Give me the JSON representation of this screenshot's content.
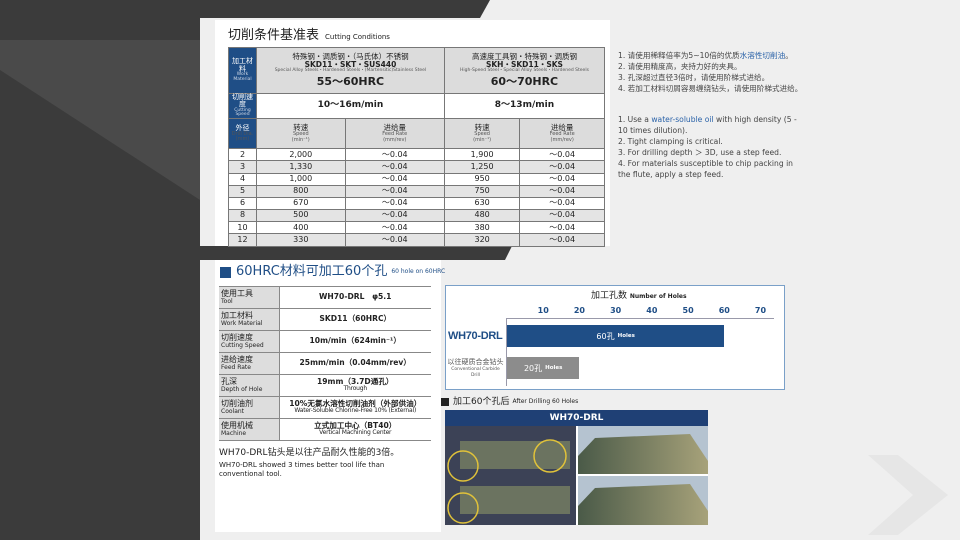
{
  "cutting": {
    "title": "切削条件基准表",
    "title_en": "Cutting Conditions",
    "work_label": "加工材料",
    "work_label_en": "Work Material",
    "speed_label": "切削速度",
    "speed_label_en": "Cutting Speed",
    "dia_label": "外径",
    "dia_label_en": "Drill Dia.",
    "dia_unit": "(mm)",
    "groups": [
      {
        "cn": "特殊钢・调质钢・（马氏体）不锈钢",
        "codes": "SKD11・SKT・SUS440",
        "en": "Special Alloy Steels・Hardened Steels・(Martensitic)Stainless Steel",
        "hrc": "55～60HRC",
        "speed": "10～16m/min"
      },
      {
        "cn": "高速度工具钢・特殊钢・调质钢",
        "codes": "SKH・SKD11・SKS",
        "en": "High-Speed Steel・Special Alloy Steels・Hardened Steels",
        "hrc": "60～70HRC",
        "speed": "8～13m/min"
      }
    ],
    "sub": {
      "rpm": "转速",
      "rpm_en": "Speed",
      "rpm_unit": "(min⁻¹)",
      "feed": "进给量",
      "feed_en": "Feed Rate",
      "feed_unit": "(mm/rev)"
    },
    "rows": [
      [
        "2",
        "2,000",
        "～0.04",
        "1,900",
        "～0.04"
      ],
      [
        "3",
        "1,330",
        "～0.04",
        "1,250",
        "～0.04"
      ],
      [
        "4",
        "1,000",
        "～0.04",
        "950",
        "～0.04"
      ],
      [
        "5",
        "800",
        "～0.04",
        "750",
        "～0.04"
      ],
      [
        "6",
        "670",
        "～0.04",
        "630",
        "～0.04"
      ],
      [
        "8",
        "500",
        "～0.04",
        "480",
        "～0.04"
      ],
      [
        "10",
        "400",
        "～0.04",
        "380",
        "～0.04"
      ],
      [
        "12",
        "330",
        "～0.04",
        "320",
        "～0.04"
      ]
    ]
  },
  "notes_cn": {
    "n1a": "1. 请使用稀释倍率为5~10倍的优质",
    "n1b": "水溶性切削油",
    "n1c": "。",
    "n2": "2. 请使用精度高，夹持力好的夹具。",
    "n3": "3. 孔深超过直径3倍时，请使用阶梯式进给。",
    "n4": "4. 若加工材料切屑容易缠绕钻头，请使用阶梯式进给。"
  },
  "notes_en": {
    "n1a": "1. Use a ",
    "n1b": "water-soluble oil",
    "n1c": " with high density (5 - 10 times dilution).",
    "n2": "2. Tight clamping is critical.",
    "n3": "3. For drilling depth ＞ 3D, use a step feed.",
    "n4": "4. For materials susceptible to chip packing in the flute, apply a step feed."
  },
  "test": {
    "title": "60HRC材料可加工60个孔",
    "title_en": "60 hole on 60HRC",
    "specs": [
      {
        "k": "使用工具",
        "ke": "Tool",
        "v": "WH70-DRL　φ5.1",
        "ve": ""
      },
      {
        "k": "加工材料",
        "ke": "Work Material",
        "v": "SKD11（60HRC）",
        "ve": ""
      },
      {
        "k": "切削速度",
        "ke": "Cutting Speed",
        "v": "10m/min（624min⁻¹）",
        "ve": ""
      },
      {
        "k": "进给速度",
        "ke": "Feed Rate",
        "v": "25mm/min（0.04mm/rev）",
        "ve": ""
      },
      {
        "k": "孔深",
        "ke": "Depth of Hole",
        "v": "19mm（3.7D通孔）",
        "ve": "Through"
      },
      {
        "k": "切削油剂",
        "ke": "Coolant",
        "v": "10%无氯水溶性切削油剂（外部供油）",
        "ve": "Water-Soluble Chlorine-Free 10% (External)"
      },
      {
        "k": "使用机械",
        "ke": "Machine",
        "v": "立式加工中心（BT40）",
        "ve": "Vertical Machining Center"
      }
    ],
    "summary": "WH70-DRL钻头是以往产品耐久性能的3倍。",
    "summary_en": "WH70-DRL showed 3 times better tool life than conventional  tool."
  },
  "chart_data": {
    "type": "bar",
    "orientation": "horizontal",
    "title": "加工孔数",
    "title_en": "Number of Holes",
    "ticks": [
      "10",
      "20",
      "30",
      "40",
      "50",
      "60",
      "70"
    ],
    "xlim": [
      0,
      74
    ],
    "categories": [
      "WH70-DRL",
      "以往硬质合金钻头"
    ],
    "category_sub": [
      "",
      "Conventional Carbide Drill"
    ],
    "values": [
      60,
      20
    ],
    "labels": [
      "60孔",
      "20孔"
    ],
    "label_unit": "Holes",
    "colors": [
      "#1f4e86",
      "#8c8c8c"
    ]
  },
  "photos": {
    "title": "加工60个孔后",
    "title_en": "After Drilling 60 Holes",
    "header": "WH70-DRL"
  }
}
